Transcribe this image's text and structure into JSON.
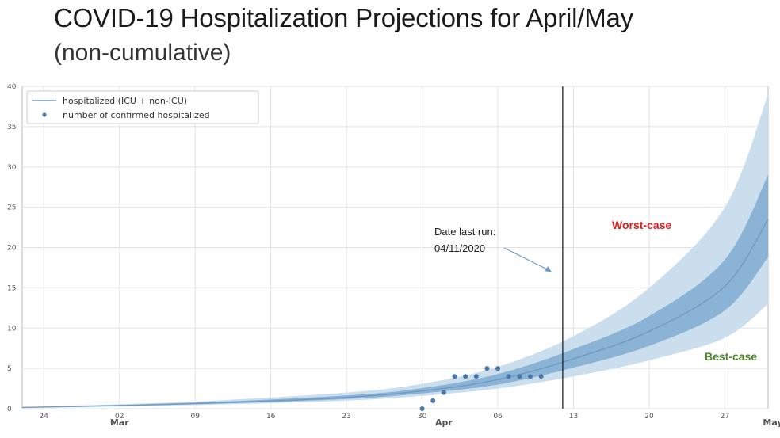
{
  "slide": {
    "title": "COVID-19 Hospitalization Projections for April/May",
    "subtitle": "(non-cumulative)"
  },
  "chart_data": {
    "type": "line",
    "x_axis": {
      "range": [
        "2020-02-22",
        "2020-05-01"
      ],
      "ticks": [
        {
          "date": "2020-02-24",
          "label": "24"
        },
        {
          "date": "2020-03-02",
          "label": "02"
        },
        {
          "date": "2020-03-09",
          "label": "09"
        },
        {
          "date": "2020-03-16",
          "label": "16"
        },
        {
          "date": "2020-03-23",
          "label": "23"
        },
        {
          "date": "2020-03-30",
          "label": "30"
        },
        {
          "date": "2020-04-06",
          "label": "06"
        },
        {
          "date": "2020-04-13",
          "label": "13"
        },
        {
          "date": "2020-04-20",
          "label": "20"
        },
        {
          "date": "2020-04-27",
          "label": "27"
        }
      ],
      "month_labels": [
        {
          "date": "2020-03-02",
          "label": "Mar"
        },
        {
          "date": "2020-04-01",
          "label": "Apr"
        },
        {
          "date": "2020-05-01",
          "label": "May"
        }
      ]
    },
    "y_axis": {
      "range": [
        0,
        40
      ],
      "ticks": [
        0,
        5,
        10,
        15,
        20,
        25,
        30,
        35,
        40
      ]
    },
    "grid": true,
    "legend": {
      "placement": "top-left",
      "entries": [
        {
          "label": "hospitalized (ICU + non-ICU)",
          "marker": "line"
        },
        {
          "label": "number of confirmed hospitalized",
          "marker": "dot"
        }
      ]
    },
    "series": [
      {
        "name": "hospitalized (ICU + non-ICU)",
        "kind": "line",
        "points": [
          {
            "x": "2020-02-22",
            "y": 0.15
          },
          {
            "x": "2020-03-02",
            "y": 0.4
          },
          {
            "x": "2020-03-09",
            "y": 0.65
          },
          {
            "x": "2020-03-16",
            "y": 0.95
          },
          {
            "x": "2020-03-23",
            "y": 1.4
          },
          {
            "x": "2020-03-30",
            "y": 2.2
          },
          {
            "x": "2020-04-06",
            "y": 3.6
          },
          {
            "x": "2020-04-13",
            "y": 6.2
          },
          {
            "x": "2020-04-20",
            "y": 9.6
          },
          {
            "x": "2020-04-27",
            "y": 15.2
          },
          {
            "x": "2020-05-01",
            "y": 23.5
          }
        ]
      },
      {
        "name": "number of confirmed hospitalized",
        "kind": "scatter",
        "points": [
          {
            "x": "2020-03-30",
            "y": 0
          },
          {
            "x": "2020-03-31",
            "y": 1
          },
          {
            "x": "2020-04-01",
            "y": 2
          },
          {
            "x": "2020-04-02",
            "y": 4
          },
          {
            "x": "2020-04-03",
            "y": 4
          },
          {
            "x": "2020-04-04",
            "y": 4
          },
          {
            "x": "2020-04-05",
            "y": 5
          },
          {
            "x": "2020-04-06",
            "y": 5
          },
          {
            "x": "2020-04-07",
            "y": 4
          },
          {
            "x": "2020-04-08",
            "y": 4
          },
          {
            "x": "2020-04-09",
            "y": 4
          },
          {
            "x": "2020-04-10",
            "y": 4
          }
        ]
      }
    ],
    "bands": [
      {
        "role": "outer",
        "color": "#c8dcec",
        "x": [
          "2020-02-22",
          "2020-03-09",
          "2020-03-23",
          "2020-03-30",
          "2020-04-06",
          "2020-04-13",
          "2020-04-20",
          "2020-04-27",
          "2020-05-01"
        ],
        "lower": [
          0.1,
          0.45,
          1.0,
          1.6,
          2.5,
          4.0,
          6.0,
          8.8,
          13.0
        ],
        "upper": [
          0.2,
          0.9,
          2.0,
          3.1,
          5.2,
          9.0,
          15.0,
          25.0,
          39.0
        ]
      },
      {
        "role": "inner",
        "color": "#86b0d4",
        "x": [
          "2020-02-22",
          "2020-03-09",
          "2020-03-23",
          "2020-03-30",
          "2020-04-06",
          "2020-04-13",
          "2020-04-20",
          "2020-04-27",
          "2020-05-01"
        ],
        "lower": [
          0.13,
          0.55,
          1.2,
          1.9,
          3.0,
          5.1,
          7.8,
          12.2,
          18.8
        ],
        "upper": [
          0.17,
          0.75,
          1.65,
          2.55,
          4.3,
          7.4,
          11.5,
          18.5,
          29.0
        ]
      }
    ],
    "vline": {
      "x": "2020-04-12"
    },
    "annotations": [
      {
        "text_lines": [
          "Date last run:",
          "04/11/2020"
        ],
        "arrow_to": {
          "x": "2020-04-11",
          "y": 17
        }
      },
      {
        "text": "Worst-case",
        "color": "#e02020"
      },
      {
        "text": "Best-case",
        "color": "#4e8a2e"
      }
    ]
  }
}
